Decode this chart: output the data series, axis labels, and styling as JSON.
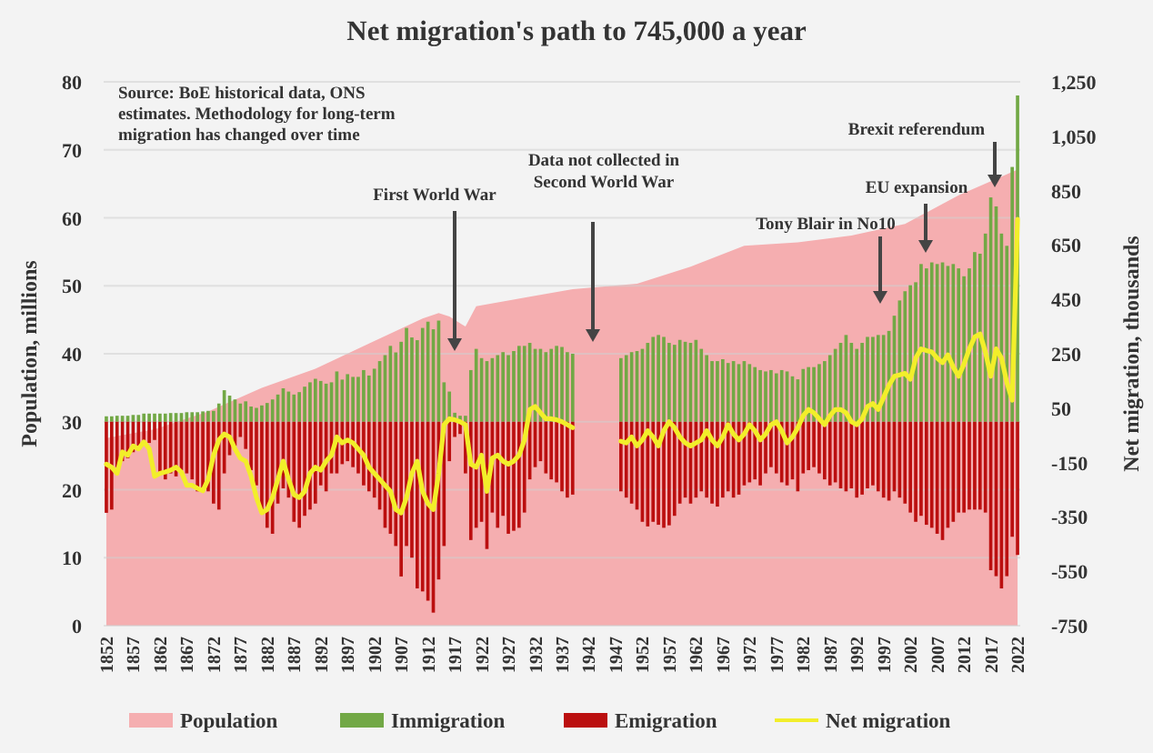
{
  "chart_data": {
    "type": "bar",
    "title": "Net migration's path to 745,000 a year",
    "ylabel": "Population, millions",
    "y2label": "Net migration, thousands",
    "annotations": [
      "Source: BoE historical data, ONS estimates. Methodology for long-term migration has changed over time",
      "First World War",
      "Data not collected in Second World War",
      "Tony Blair in No10",
      "EU expansion",
      "Brexit referendum"
    ],
    "x": [
      1852,
      1853,
      1854,
      1855,
      1856,
      1857,
      1858,
      1859,
      1860,
      1861,
      1862,
      1863,
      1864,
      1865,
      1866,
      1867,
      1868,
      1869,
      1870,
      1871,
      1872,
      1873,
      1874,
      1875,
      1876,
      1877,
      1878,
      1879,
      1880,
      1881,
      1882,
      1883,
      1884,
      1885,
      1886,
      1887,
      1888,
      1889,
      1890,
      1891,
      1892,
      1893,
      1894,
      1895,
      1896,
      1897,
      1898,
      1899,
      1900,
      1901,
      1902,
      1903,
      1904,
      1905,
      1906,
      1907,
      1908,
      1909,
      1910,
      1911,
      1912,
      1913,
      1914,
      1915,
      1916,
      1917,
      1918,
      1919,
      1920,
      1921,
      1922,
      1923,
      1924,
      1925,
      1926,
      1927,
      1928,
      1929,
      1930,
      1931,
      1932,
      1933,
      1934,
      1935,
      1936,
      1937,
      1938,
      1939,
      1940,
      1941,
      1942,
      1943,
      1944,
      1945,
      1946,
      1947,
      1948,
      1949,
      1950,
      1951,
      1952,
      1953,
      1954,
      1955,
      1956,
      1957,
      1958,
      1959,
      1960,
      1961,
      1962,
      1963,
      1964,
      1965,
      1966,
      1967,
      1968,
      1969,
      1970,
      1971,
      1972,
      1973,
      1974,
      1975,
      1976,
      1977,
      1978,
      1979,
      1980,
      1981,
      1982,
      1983,
      1984,
      1985,
      1986,
      1987,
      1988,
      1989,
      1990,
      1991,
      1992,
      1993,
      1994,
      1995,
      1996,
      1997,
      1998,
      1999,
      2000,
      2001,
      2002,
      2003,
      2004,
      2005,
      2006,
      2007,
      2008,
      2009,
      2010,
      2011,
      2012,
      2013,
      2014,
      2015,
      2016,
      2017,
      2018,
      2019,
      2020,
      2021,
      2022
    ],
    "xlim": [
      1851.5,
      2022.5
    ],
    "xticks": [
      1852,
      1857,
      1862,
      1867,
      1872,
      1877,
      1882,
      1887,
      1892,
      1897,
      1902,
      1907,
      1912,
      1917,
      1922,
      1927,
      1932,
      1937,
      1942,
      1947,
      1952,
      1957,
      1962,
      1967,
      1972,
      1977,
      1982,
      1987,
      1992,
      1997,
      2002,
      2007,
      2012,
      2017,
      2022
    ],
    "ylim": [
      0,
      80
    ],
    "yticks": [
      0,
      10,
      20,
      30,
      40,
      50,
      60,
      70,
      80
    ],
    "y2lim": [
      -750,
      1250
    ],
    "y2ticks": [
      -750,
      -550,
      -350,
      -150,
      50,
      250,
      450,
      650,
      850,
      {
        "value": 1050,
        "label": "1,050"
      },
      {
        "value": 1250,
        "label": "1,250"
      }
    ],
    "grid": "y",
    "legend": "bottom",
    "series": [
      {
        "name": "Population",
        "type": "area",
        "color": "#f5aeb0",
        "x": [
          1852,
          1861,
          1871,
          1881,
          1891,
          1901,
          1911,
          1914,
          1916,
          1919,
          1921,
          1931,
          1939,
          1951,
          1961,
          1971,
          1981,
          1991,
          2001,
          2011,
          2022
        ],
        "values": [
          27.6,
          28.9,
          31.5,
          35,
          37.8,
          41.5,
          45.2,
          46,
          45.5,
          44,
          47,
          48.4,
          49.5,
          50.3,
          52.8,
          55.9,
          56.4,
          57.4,
          59.1,
          63.3,
          67.1
        ]
      },
      {
        "name": "Immigration",
        "axis": "y2",
        "color": "#72a845",
        "values": [
          20,
          20,
          22,
          22,
          22,
          25,
          25,
          30,
          30,
          30,
          30,
          30,
          32,
          32,
          32,
          35,
          35,
          35,
          38,
          40,
          40,
          67,
          116,
          96,
          82,
          67,
          75,
          56,
          51,
          60,
          69,
          82,
          100,
          123,
          111,
          100,
          109,
          129,
          145,
          158,
          150,
          140,
          145,
          185,
          155,
          175,
          165,
          165,
          190,
          170,
          195,
          223,
          245,
          279,
          255,
          294,
          345,
          310,
          300,
          345,
          368,
          340,
          372,
          145,
          111,
          33,
          22,
          22,
          190,
          268,
          234,
          223,
          234,
          245,
          256,
          245,
          260,
          279,
          279,
          290,
          268,
          268,
          256,
          268,
          279,
          275,
          256,
          250,
          null,
          null,
          null,
          null,
          null,
          null,
          null,
          null,
          234,
          245,
          256,
          260,
          268,
          290,
          312,
          319,
          312,
          290,
          283,
          301,
          294,
          290,
          301,
          268,
          245,
          223,
          223,
          230,
          216,
          223,
          212,
          223,
          212,
          201,
          190,
          185,
          190,
          178,
          190,
          185,
          167,
          156,
          194,
          201,
          201,
          212,
          223,
          245,
          268,
          290,
          319,
          290,
          268,
          290,
          312,
          312,
          319,
          319,
          334,
          390,
          446,
          480,
          502,
          513,
          580,
          564,
          586,
          580,
          586,
          573,
          580,
          564,
          535,
          564,
          624,
          618,
          692,
          825,
          792,
          692,
          647,
          937,
          1200
        ]
      },
      {
        "name": "Emigration",
        "axis": "y2",
        "color": "#bb0f0f",
        "values": [
          -335,
          -323,
          -167,
          -145,
          -134,
          -112,
          -100,
          -78,
          -78,
          -67,
          -190,
          -212,
          -190,
          -201,
          -178,
          -190,
          -212,
          -256,
          -245,
          -256,
          -301,
          -323,
          -190,
          -123,
          -89,
          -56,
          -100,
          -178,
          -234,
          -323,
          -390,
          -412,
          -301,
          -245,
          -279,
          -368,
          -390,
          -346,
          -323,
          -301,
          -234,
          -256,
          -190,
          -190,
          -156,
          -145,
          -167,
          -190,
          -234,
          -256,
          -279,
          -323,
          -390,
          -412,
          -457,
          -569,
          -457,
          -500,
          -613,
          -624,
          -658,
          -702,
          -580,
          -457,
          -145,
          -56,
          -45,
          -190,
          -435,
          -390,
          -368,
          -468,
          -334,
          -390,
          -346,
          -412,
          -401,
          -390,
          -334,
          -212,
          -167,
          -145,
          -190,
          -212,
          -223,
          -256,
          -279,
          -268,
          null,
          null,
          null,
          null,
          null,
          null,
          null,
          null,
          -256,
          -279,
          -301,
          -323,
          -368,
          -385,
          -368,
          -379,
          -390,
          -381,
          -346,
          -301,
          -279,
          -301,
          -279,
          -256,
          -279,
          -301,
          -312,
          -279,
          -256,
          -279,
          -268,
          -234,
          -223,
          -212,
          -234,
          -190,
          -167,
          -190,
          -223,
          -234,
          -212,
          -256,
          -190,
          -178,
          -167,
          -190,
          -212,
          -234,
          -223,
          -245,
          -256,
          -245,
          -279,
          -268,
          -245,
          -234,
          -256,
          -279,
          -290,
          -256,
          -279,
          -301,
          -334,
          -368,
          -346,
          -379,
          -390,
          -412,
          -435,
          -390,
          -368,
          -334,
          -334,
          -323,
          -323,
          -323,
          -334,
          -546,
          -568,
          -613,
          -568,
          -423,
          -490
        ]
      },
      {
        "name": "Net migration",
        "type": "line",
        "axis": "y2",
        "color": "#f2ee2a",
        "values": [
          -156,
          -167,
          -190,
          -111,
          -123,
          -89,
          -100,
          -74,
          -100,
          -201,
          -190,
          -185,
          -178,
          -167,
          -185,
          -234,
          -234,
          -245,
          -254,
          -212,
          -123,
          -67,
          -45,
          -56,
          -100,
          -134,
          -145,
          -200,
          -279,
          -335,
          -323,
          -279,
          -212,
          -145,
          -212,
          -268,
          -279,
          -256,
          -190,
          -167,
          -178,
          -145,
          -123,
          -56,
          -78,
          -67,
          -78,
          -100,
          -123,
          -167,
          -190,
          -212,
          -234,
          -256,
          -323,
          -335,
          -279,
          -190,
          -145,
          -256,
          -301,
          -323,
          -190,
          -11,
          11,
          7,
          0,
          -11,
          -156,
          -167,
          -123,
          -256,
          -134,
          -123,
          -145,
          -156,
          -145,
          -123,
          -67,
          45,
          56,
          33,
          11,
          11,
          7,
          0,
          -11,
          -22,
          null,
          null,
          null,
          null,
          null,
          null,
          null,
          null,
          -72,
          -78,
          -56,
          -89,
          -67,
          -33,
          -56,
          -89,
          -33,
          0,
          -22,
          -56,
          -78,
          -89,
          -78,
          -67,
          -33,
          -67,
          -89,
          -56,
          -11,
          -45,
          -67,
          -45,
          -11,
          -33,
          -67,
          -45,
          -11,
          0,
          -33,
          -78,
          -56,
          -22,
          22,
          45,
          33,
          11,
          -11,
          22,
          45,
          45,
          33,
          0,
          -11,
          11,
          56,
          67,
          45,
          89,
          134,
          167,
          172,
          178,
          156,
          234,
          268,
          262,
          257,
          234,
          217,
          246,
          201,
          167,
          212,
          268,
          312,
          323,
          257,
          167,
          268,
          234,
          145,
          79,
          745
        ]
      }
    ]
  }
}
